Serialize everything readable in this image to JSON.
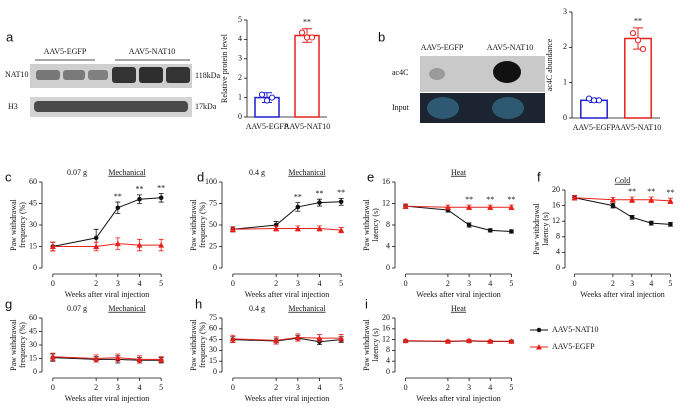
{
  "panel_labels": [
    "a",
    "b",
    "c",
    "d",
    "e",
    "f",
    "g",
    "h",
    "i"
  ],
  "blots": [
    {
      "groups": [
        "AAV5-EGFP",
        "AAV5-NAT10"
      ],
      "rows": [
        "NAT10",
        "H3"
      ],
      "sizes": [
        "118kDa",
        "17kDa"
      ]
    },
    {
      "groups": [
        "AAV5-EGFP",
        "AAV5-NAT10"
      ],
      "rows": [
        "ac4C",
        "Input"
      ]
    }
  ],
  "legend": [
    {
      "name": "AAV5-NAT10",
      "color": "#111111",
      "marker": "circle"
    },
    {
      "name": "AAV5-EGFP",
      "color": "#e8201c",
      "marker": "triangle"
    }
  ],
  "chart_data": [
    {
      "type": "bar",
      "ylabel": "Relative protein level",
      "categories": [
        "AAV5-EGFP",
        "AAV5-NAT10"
      ],
      "colors": [
        "#1f1fd0",
        "#e8201c"
      ],
      "values": [
        1,
        4.2
      ],
      "errors": [
        0.25,
        0.35
      ],
      "points": [
        [
          1.15,
          0.85,
          1.0
        ],
        [
          4.35,
          4.1,
          4.1
        ]
      ],
      "significance": [
        null,
        "**"
      ],
      "ylim": [
        0,
        5
      ],
      "yticks": [
        0,
        1,
        2,
        3,
        4,
        5
      ]
    },
    {
      "type": "bar",
      "ylabel": "ac4C abundance",
      "categories": [
        "AAV5-EGFP",
        "AAV5-NAT10"
      ],
      "colors": [
        "#1f1fd0",
        "#e8201c"
      ],
      "values": [
        0.5,
        2.25
      ],
      "errors": [
        0.06,
        0.3
      ],
      "points": [
        [
          0.55,
          0.5,
          0.5
        ],
        [
          2.4,
          2.2,
          1.95
        ]
      ],
      "significance": [
        null,
        "**"
      ],
      "ylim": [
        0,
        3
      ],
      "yticks": [
        0,
        1,
        2,
        3
      ]
    },
    {
      "type": "line",
      "condition": "0.07 g",
      "title": "Mechanical",
      "ylabel": [
        "Paw withdrawal",
        "frequency (%)"
      ],
      "xlabel": "Weeks after viral injection",
      "x": [
        0,
        2,
        3,
        4,
        5
      ],
      "xlim": [
        -0.5,
        5.5
      ],
      "xticks": [
        0,
        2,
        3,
        4,
        5
      ],
      "ylim": [
        0,
        60
      ],
      "yticks": [
        0,
        15,
        30,
        45,
        60
      ],
      "series": [
        {
          "color": "#111111",
          "marker": "circle",
          "values": [
            15,
            21,
            42,
            48,
            49
          ],
          "errors": [
            3,
            6,
            4,
            3,
            3
          ]
        },
        {
          "color": "#e8201c",
          "marker": "triangle",
          "values": [
            15,
            15,
            17,
            16,
            16
          ],
          "errors": [
            3,
            3,
            4,
            4,
            4
          ]
        }
      ],
      "significance": [
        null,
        null,
        "**",
        "**",
        "**"
      ]
    },
    {
      "type": "line",
      "condition": "0.4 g",
      "title": "Mechanical",
      "ylabel": [
        "Paw withdrawal",
        "frequency (%)"
      ],
      "xlabel": "Weeks after viral injection",
      "x": [
        0,
        2,
        3,
        4,
        5
      ],
      "xlim": [
        -0.5,
        5.5
      ],
      "xticks": [
        0,
        2,
        3,
        4,
        5
      ],
      "ylim": [
        0,
        100
      ],
      "yticks": [
        0,
        25,
        50,
        75,
        100
      ],
      "series": [
        {
          "color": "#111111",
          "marker": "circle",
          "values": [
            45,
            50,
            71,
            76,
            77
          ],
          "errors": [
            3,
            4,
            5,
            4,
            4
          ]
        },
        {
          "color": "#e8201c",
          "marker": "triangle",
          "values": [
            45,
            46,
            46,
            46,
            44
          ],
          "errors": [
            3,
            3,
            3,
            3,
            3
          ]
        }
      ],
      "significance": [
        null,
        null,
        "**",
        "**",
        "**"
      ]
    },
    {
      "type": "line",
      "title": "Heat",
      "ylabel": [
        "Paw withdrawal",
        "latency (s)"
      ],
      "xlabel": "Weeks after viral injection",
      "x": [
        0,
        2,
        3,
        4,
        5
      ],
      "xlim": [
        -0.5,
        5.5
      ],
      "xticks": [
        0,
        2,
        3,
        4,
        5
      ],
      "ylim": [
        0,
        16
      ],
      "yticks": [
        0,
        4,
        8,
        12,
        16
      ],
      "series": [
        {
          "color": "#111111",
          "marker": "circle",
          "values": [
            11.5,
            10.8,
            8,
            7,
            6.8
          ],
          "errors": [
            0.4,
            0.4,
            0.4,
            0.3,
            0.3
          ]
        },
        {
          "color": "#e8201c",
          "marker": "triangle",
          "values": [
            11.5,
            11.3,
            11.3,
            11.3,
            11.3
          ],
          "errors": [
            0.4,
            0.4,
            0.4,
            0.4,
            0.4
          ]
        }
      ],
      "significance": [
        null,
        null,
        "**",
        "**",
        "**"
      ]
    },
    {
      "type": "line",
      "title": "Cold",
      "ylabel": [
        "Paw withdrawal",
        "latency (s)"
      ],
      "xlabel": "Weeks after viral injection",
      "x": [
        0,
        2,
        3,
        4,
        5
      ],
      "xlim": [
        -0.5,
        5.5
      ],
      "xticks": [
        0,
        2,
        3,
        4,
        5
      ],
      "ylim": [
        0,
        20
      ],
      "yticks": [
        0,
        4,
        8,
        12,
        16,
        20
      ],
      "series": [
        {
          "color": "#111111",
          "marker": "circle",
          "values": [
            18,
            16,
            13,
            11.5,
            11.2
          ],
          "errors": [
            0.6,
            0.6,
            0.5,
            0.5,
            0.5
          ]
        },
        {
          "color": "#e8201c",
          "marker": "triangle",
          "values": [
            18,
            17.5,
            17.5,
            17.5,
            17.2
          ],
          "errors": [
            0.6,
            0.6,
            0.7,
            0.7,
            0.7
          ]
        }
      ],
      "significance": [
        null,
        null,
        "**",
        "**",
        "**"
      ]
    },
    {
      "type": "line",
      "condition": "0.07 g",
      "title": "Mechanical",
      "ylabel": [
        "Paw withdrawal",
        "frequency (%)"
      ],
      "xlabel": "Weeks after viral injection",
      "x": [
        0,
        2,
        3,
        4,
        5
      ],
      "xlim": [
        -0.5,
        5.5
      ],
      "xticks": [
        0,
        2,
        3,
        4,
        5
      ],
      "ylim": [
        0,
        60
      ],
      "yticks": [
        0,
        15,
        30,
        45,
        60
      ],
      "series": [
        {
          "color": "#111111",
          "marker": "circle",
          "values": [
            16,
            14,
            14,
            13,
            13
          ],
          "errors": [
            4,
            3,
            4,
            3,
            3
          ]
        },
        {
          "color": "#e8201c",
          "marker": "triangle",
          "values": [
            17,
            15,
            16,
            14,
            14
          ],
          "errors": [
            4,
            4,
            4,
            4,
            3
          ]
        }
      ]
    },
    {
      "type": "line",
      "condition": "0.4 g",
      "title": "Mechanical",
      "ylabel": [
        "Paw withdrawal",
        "frequency (%)"
      ],
      "xlabel": "Weeks after viral injection",
      "x": [
        0,
        2,
        3,
        4,
        5
      ],
      "xlim": [
        -0.5,
        5.5
      ],
      "xticks": [
        0,
        2,
        3,
        4,
        5
      ],
      "ylim": [
        0,
        75
      ],
      "yticks": [
        0,
        15,
        30,
        45,
        60,
        75
      ],
      "series": [
        {
          "color": "#111111",
          "marker": "circle",
          "values": [
            45,
            43,
            47,
            42,
            45
          ],
          "errors": [
            4,
            4,
            4,
            4,
            4
          ]
        },
        {
          "color": "#e8201c",
          "marker": "triangle",
          "values": [
            46,
            44,
            48,
            47,
            47
          ],
          "errors": [
            5,
            5,
            5,
            5,
            5
          ]
        }
      ]
    },
    {
      "type": "line",
      "title": "Heat",
      "ylabel": [
        "Paw withdrawal",
        "latency (s)"
      ],
      "xlabel": "Weeks after viral injection",
      "x": [
        0,
        2,
        3,
        4,
        5
      ],
      "xlim": [
        -0.5,
        5.5
      ],
      "xticks": [
        0,
        2,
        3,
        4,
        5
      ],
      "ylim": [
        0,
        20
      ],
      "yticks": [
        0,
        4,
        8,
        12,
        16,
        20
      ],
      "series": [
        {
          "color": "#111111",
          "marker": "circle",
          "values": [
            11.5,
            11.3,
            11.5,
            11.3,
            11.3
          ],
          "errors": [
            0.4,
            0.4,
            0.4,
            0.4,
            0.4
          ]
        },
        {
          "color": "#e8201c",
          "marker": "triangle",
          "values": [
            11.6,
            11.4,
            11.6,
            11.4,
            11.4
          ],
          "errors": [
            0.4,
            0.4,
            0.4,
            0.4,
            0.4
          ]
        }
      ]
    }
  ]
}
